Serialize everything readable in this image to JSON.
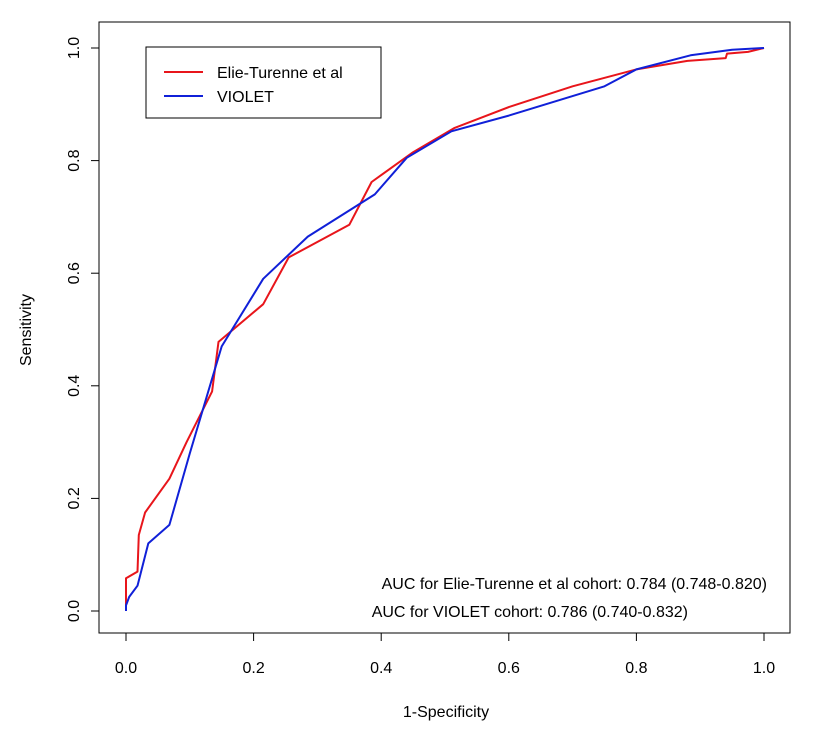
{
  "chart_data": {
    "type": "line",
    "title": "",
    "xlabel": "1-Specificity",
    "ylabel": "Sensitivity",
    "xlim": [
      0,
      1
    ],
    "ylim": [
      0,
      1
    ],
    "x_ticks": [
      "0.0",
      "0.2",
      "0.4",
      "0.6",
      "0.8",
      "1.0"
    ],
    "y_ticks": [
      "0.0",
      "0.2",
      "0.4",
      "0.6",
      "0.8",
      "1.0"
    ],
    "grid": false,
    "legend_position": "top-left",
    "series": [
      {
        "name": "Elie-Turenne et al",
        "color": "#e8151b",
        "points": [
          [
            0.0,
            0.0
          ],
          [
            0.0,
            0.058
          ],
          [
            0.018,
            0.07
          ],
          [
            0.02,
            0.135
          ],
          [
            0.03,
            0.175
          ],
          [
            0.068,
            0.235
          ],
          [
            0.095,
            0.3
          ],
          [
            0.135,
            0.39
          ],
          [
            0.145,
            0.478
          ],
          [
            0.215,
            0.545
          ],
          [
            0.255,
            0.628
          ],
          [
            0.35,
            0.686
          ],
          [
            0.385,
            0.762
          ],
          [
            0.45,
            0.815
          ],
          [
            0.515,
            0.858
          ],
          [
            0.6,
            0.895
          ],
          [
            0.7,
            0.932
          ],
          [
            0.8,
            0.962
          ],
          [
            0.88,
            0.977
          ],
          [
            0.94,
            0.982
          ],
          [
            0.942,
            0.99
          ],
          [
            0.975,
            0.993
          ],
          [
            1.0,
            1.0
          ]
        ]
      },
      {
        "name": "VIOLET",
        "color": "#1020d8",
        "points": [
          [
            0.0,
            0.0
          ],
          [
            0.0,
            0.01
          ],
          [
            0.005,
            0.025
          ],
          [
            0.018,
            0.045
          ],
          [
            0.035,
            0.12
          ],
          [
            0.068,
            0.153
          ],
          [
            0.1,
            0.28
          ],
          [
            0.15,
            0.47
          ],
          [
            0.215,
            0.59
          ],
          [
            0.285,
            0.665
          ],
          [
            0.39,
            0.74
          ],
          [
            0.44,
            0.805
          ],
          [
            0.51,
            0.852
          ],
          [
            0.6,
            0.88
          ],
          [
            0.75,
            0.932
          ],
          [
            0.8,
            0.962
          ],
          [
            0.885,
            0.987
          ],
          [
            0.925,
            0.993
          ],
          [
            0.95,
            0.997
          ],
          [
            1.0,
            1.0
          ]
        ]
      }
    ],
    "annotations": [
      "AUC for Elie-Turenne et al cohort: 0.784 (0.748-0.820)",
      "AUC for VIOLET cohort: 0.786 (0.740-0.832)"
    ]
  }
}
